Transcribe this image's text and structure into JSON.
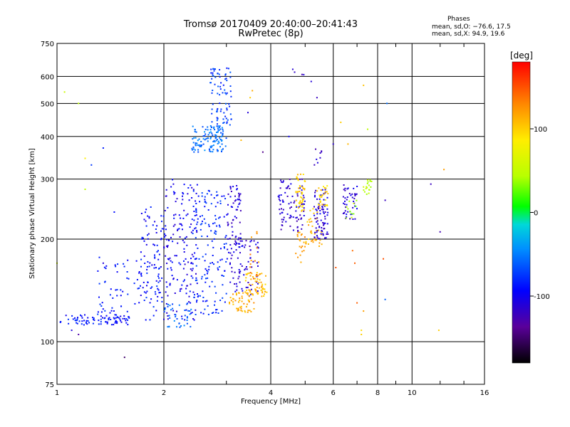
{
  "chart_data": {
    "type": "scatter",
    "title": "Tromsø 20170409 20:40:00–20:41:43",
    "subtitle": "RwPretec (8p)",
    "xlabel": "Frequency [MHz]",
    "ylabel": "Stationary phase Virtual Height [km]",
    "x_scale": "log",
    "y_scale": "log",
    "xlim": [
      1,
      16
    ],
    "ylim": [
      75,
      750
    ],
    "x_ticks": [
      1,
      2,
      4,
      6,
      8,
      10,
      16
    ],
    "y_ticks": [
      75,
      100,
      200,
      300,
      400,
      500,
      600,
      750
    ],
    "grid": true,
    "colorbar": {
      "label": "[deg]",
      "range": [
        -180,
        180
      ],
      "ticks": [
        100,
        0,
        -100
      ]
    },
    "phases": {
      "title": "Phases",
      "o_line": "mean, sd,O: −76.6, 17.5",
      "x_line": "mean, sd,X:  94.9, 19.6"
    },
    "clusters": [
      {
        "x": [
          1.02,
          1.6
        ],
        "y": [
          112,
          120
        ],
        "phase": -90,
        "n": 80
      },
      {
        "x": [
          1.3,
          1.95
        ],
        "y": [
          115,
          180
        ],
        "phase": -85,
        "n": 90
      },
      {
        "x": [
          1.7,
          2.0
        ],
        "y": [
          130,
          250
        ],
        "phase": -95,
        "n": 70
      },
      {
        "x": [
          2.0,
          2.5
        ],
        "y": [
          115,
          300
        ],
        "phase": -100,
        "n": 160
      },
      {
        "x": [
          2.0,
          2.4
        ],
        "y": [
          110,
          130
        ],
        "phase": -60,
        "n": 40
      },
      {
        "x": [
          2.4,
          3.0
        ],
        "y": [
          120,
          280
        ],
        "phase": -80,
        "n": 160
      },
      {
        "x": [
          2.4,
          3.0
        ],
        "y": [
          360,
          430
        ],
        "phase": -55,
        "n": 120
      },
      {
        "x": [
          2.7,
          3.1
        ],
        "y": [
          430,
          640
        ],
        "phase": -75,
        "n": 80
      },
      {
        "x": [
          3.0,
          3.3
        ],
        "y": [
          140,
          290
        ],
        "phase": -110,
        "n": 90
      },
      {
        "x": [
          3.2,
          3.7
        ],
        "y": [
          135,
          200
        ],
        "phase": -110,
        "n": 50
      },
      {
        "x": [
          3.05,
          3.6
        ],
        "y": [
          122,
          140
        ],
        "phase": 115,
        "n": 50
      },
      {
        "x": [
          3.4,
          3.9
        ],
        "y": [
          135,
          160
        ],
        "phase": 108,
        "n": 60
      },
      {
        "x": [
          3.45,
          3.8
        ],
        "y": [
          150,
          220
        ],
        "phase": 130,
        "n": 15
      },
      {
        "x": [
          4.2,
          5.0
        ],
        "y": [
          210,
          300
        ],
        "phase": -115,
        "n": 90
      },
      {
        "x": [
          4.7,
          5.0
        ],
        "y": [
          240,
          310
        ],
        "phase": 100,
        "n": 45
      },
      {
        "x": [
          4.7,
          5.0
        ],
        "y": [
          170,
          210
        ],
        "phase": 120,
        "n": 20
      },
      {
        "x": [
          5.0,
          5.6
        ],
        "y": [
          190,
          250
        ],
        "phase": 110,
        "n": 40
      },
      {
        "x": [
          5.3,
          5.8
        ],
        "y": [
          200,
          280
        ],
        "phase": -110,
        "n": 80
      },
      {
        "x": [
          5.4,
          5.8
        ],
        "y": [
          250,
          290
        ],
        "phase": 95,
        "n": 30
      },
      {
        "x": [
          6.4,
          7.0
        ],
        "y": [
          225,
          290
        ],
        "phase": -110,
        "n": 45
      },
      {
        "x": [
          6.5,
          7.0
        ],
        "y": [
          230,
          260
        ],
        "phase": 40,
        "n": 12
      },
      {
        "x": [
          7.3,
          7.8
        ],
        "y": [
          270,
          300
        ],
        "phase": 50,
        "n": 18
      },
      {
        "x": [
          5.3,
          5.6
        ],
        "y": [
          330,
          370
        ],
        "phase": -120,
        "n": 8
      },
      {
        "x": [
          4.6,
          5.0
        ],
        "y": [
          600,
          640
        ],
        "phase": -120,
        "n": 4
      }
    ],
    "points": [
      {
        "x": 1.05,
        "y": 540,
        "phase": 55
      },
      {
        "x": 1.15,
        "y": 500,
        "phase": 45
      },
      {
        "x": 1.2,
        "y": 280,
        "phase": 45
      },
      {
        "x": 1.25,
        "y": 330,
        "phase": -75
      },
      {
        "x": 1.35,
        "y": 370,
        "phase": -85
      },
      {
        "x": 1.45,
        "y": 240,
        "phase": -90
      },
      {
        "x": 1.0,
        "y": 170,
        "phase": 60
      },
      {
        "x": 1.2,
        "y": 345,
        "phase": 85
      },
      {
        "x": 1.35,
        "y": 170,
        "phase": -110
      },
      {
        "x": 1.55,
        "y": 90,
        "phase": -150
      },
      {
        "x": 1.1,
        "y": 108,
        "phase": -110
      },
      {
        "x": 1.15,
        "y": 105,
        "phase": -130
      },
      {
        "x": 3.5,
        "y": 520,
        "phase": 100
      },
      {
        "x": 3.55,
        "y": 545,
        "phase": 115
      },
      {
        "x": 3.45,
        "y": 470,
        "phase": -110
      },
      {
        "x": 3.8,
        "y": 360,
        "phase": -140
      },
      {
        "x": 3.3,
        "y": 390,
        "phase": 110
      },
      {
        "x": 4.5,
        "y": 400,
        "phase": -100
      },
      {
        "x": 5.4,
        "y": 520,
        "phase": -120
      },
      {
        "x": 6.0,
        "y": 380,
        "phase": -115
      },
      {
        "x": 6.3,
        "y": 440,
        "phase": 100
      },
      {
        "x": 6.6,
        "y": 380,
        "phase": 110
      },
      {
        "x": 7.3,
        "y": 565,
        "phase": 105
      },
      {
        "x": 7.5,
        "y": 420,
        "phase": 45
      },
      {
        "x": 8.5,
        "y": 500,
        "phase": -55
      },
      {
        "x": 6.9,
        "y": 170,
        "phase": 145
      },
      {
        "x": 6.1,
        "y": 165,
        "phase": 150
      },
      {
        "x": 8.3,
        "y": 175,
        "phase": 150
      },
      {
        "x": 6.8,
        "y": 185,
        "phase": 140
      },
      {
        "x": 7.0,
        "y": 130,
        "phase": 145
      },
      {
        "x": 7.3,
        "y": 123,
        "phase": 120
      },
      {
        "x": 7.2,
        "y": 108,
        "phase": 95
      },
      {
        "x": 7.2,
        "y": 105,
        "phase": 100
      },
      {
        "x": 8.4,
        "y": 133,
        "phase": -60
      },
      {
        "x": 8.4,
        "y": 260,
        "phase": -120
      },
      {
        "x": 11.3,
        "y": 290,
        "phase": -120
      },
      {
        "x": 12.0,
        "y": 210,
        "phase": -125
      },
      {
        "x": 12.3,
        "y": 320,
        "phase": 120
      },
      {
        "x": 11.9,
        "y": 108,
        "phase": 100
      },
      {
        "x": 5.2,
        "y": 580,
        "phase": -110
      }
    ]
  }
}
